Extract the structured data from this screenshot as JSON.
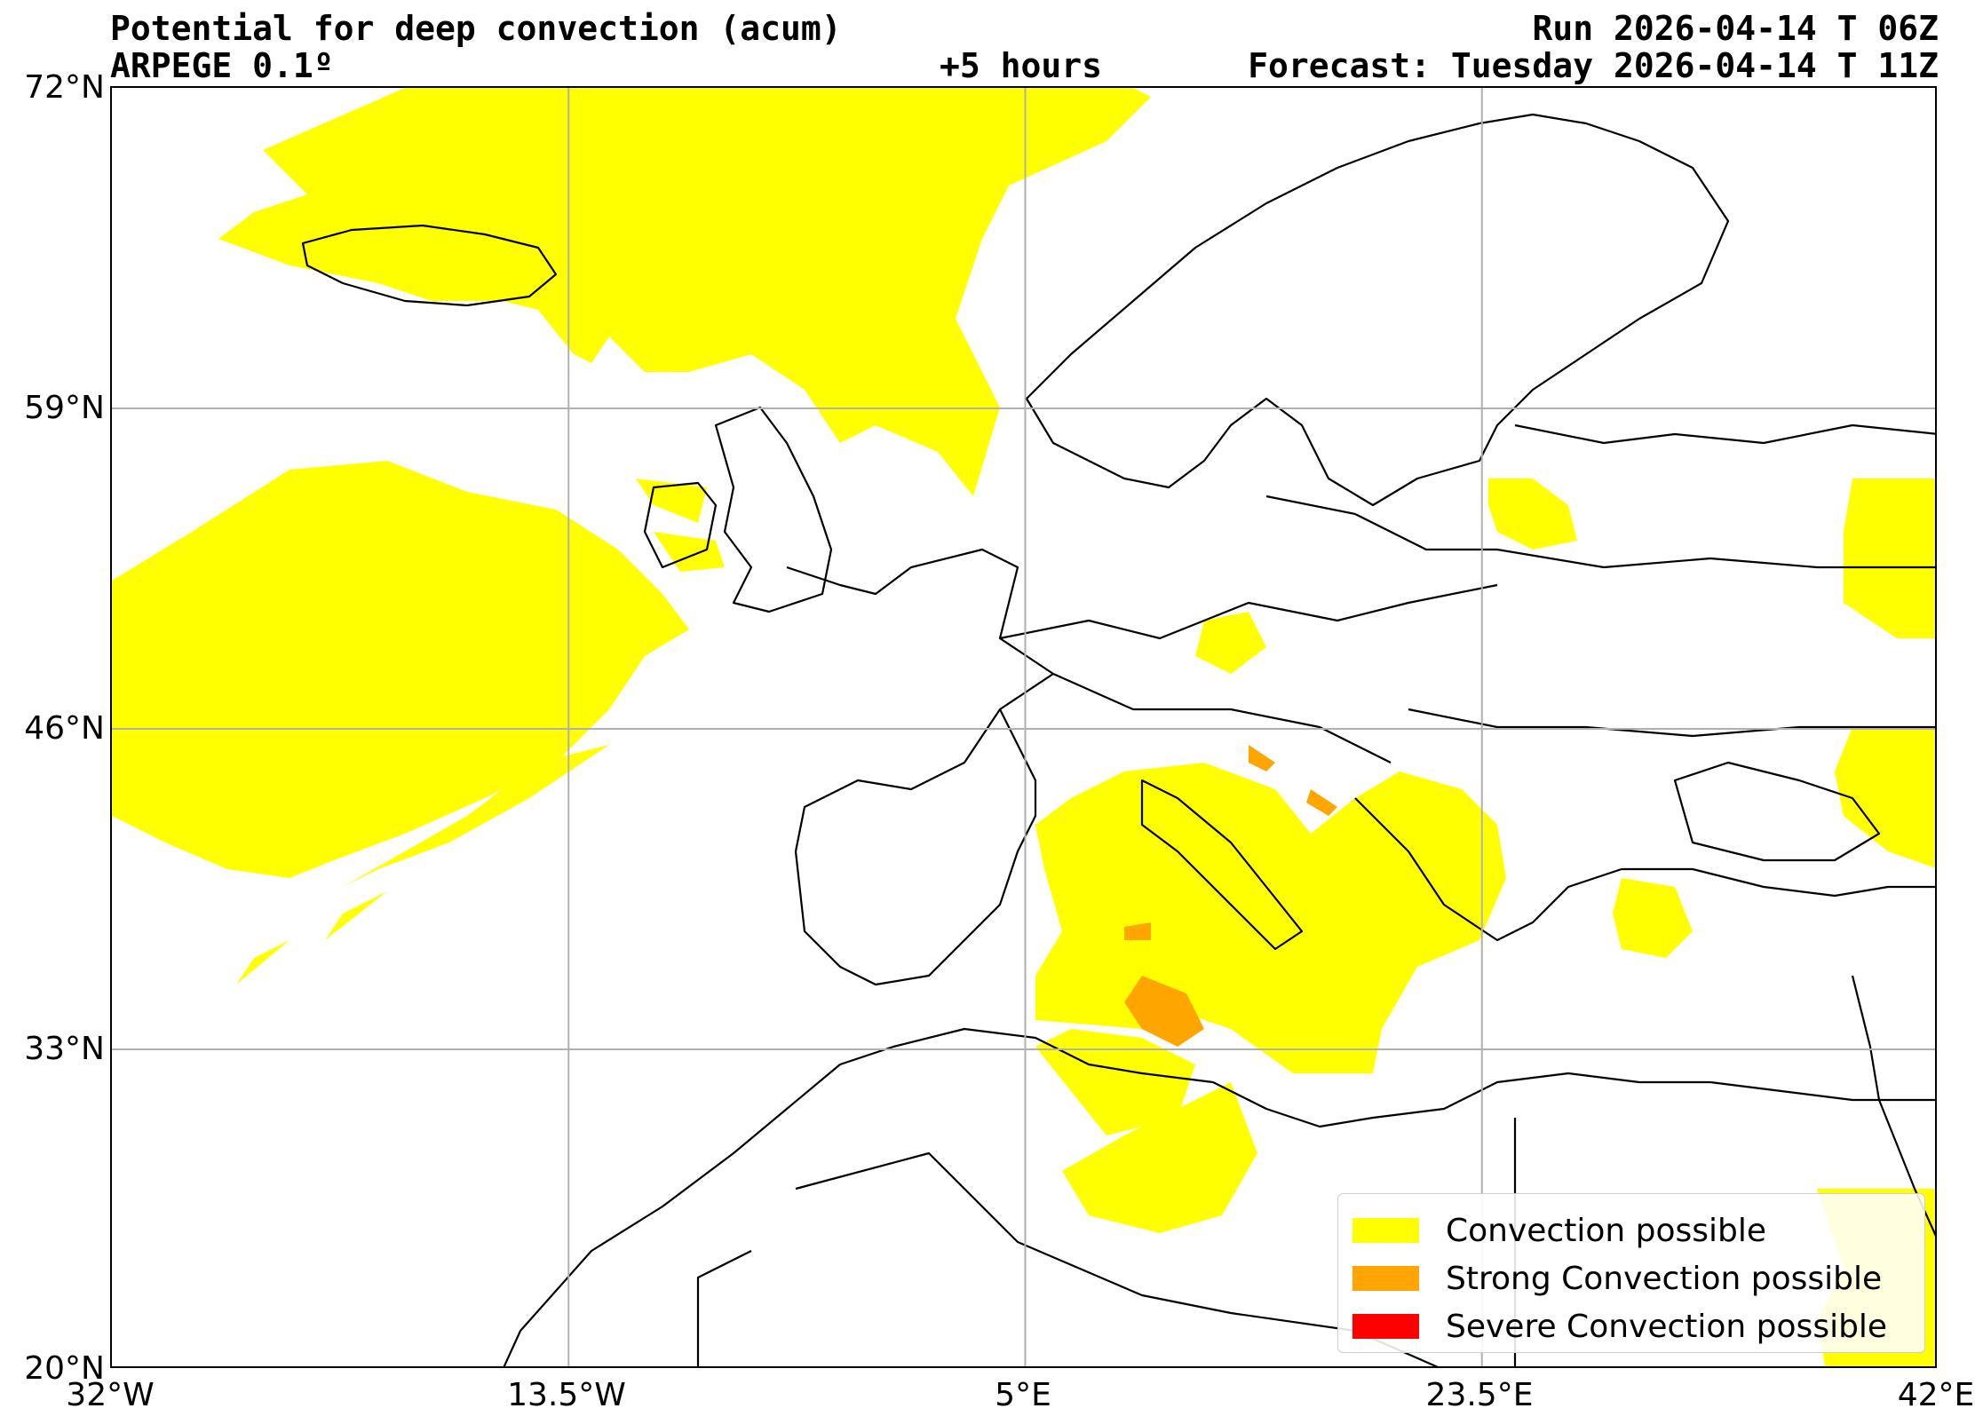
{
  "header": {
    "title": "Potential for deep convection (acum)",
    "model": "ARPEGE 0.1º",
    "lead_time": "+5 hours",
    "run": "Run 2026-04-14 T 06Z",
    "forecast": "Forecast: Tuesday 2026-04-14 T 11Z"
  },
  "map": {
    "projection": "equirectangular",
    "lat_range": [
      20,
      72
    ],
    "lon_range": [
      -32,
      42
    ],
    "gridlines": true,
    "lat_ticks": [
      "72°N",
      "59°N",
      "46°N",
      "33°N",
      "20°N"
    ],
    "lon_ticks": [
      "32°W",
      "13.5°W",
      "5°E",
      "23.5°E",
      "42°E"
    ]
  },
  "legend": {
    "placement": "lower-right",
    "items": [
      {
        "label": "Convection possible",
        "color": "#ffff00"
      },
      {
        "label": "Strong Convection possible",
        "color": "#ffa500"
      },
      {
        "label": "Severe Convection possible",
        "color": "#ff0000"
      }
    ]
  }
}
